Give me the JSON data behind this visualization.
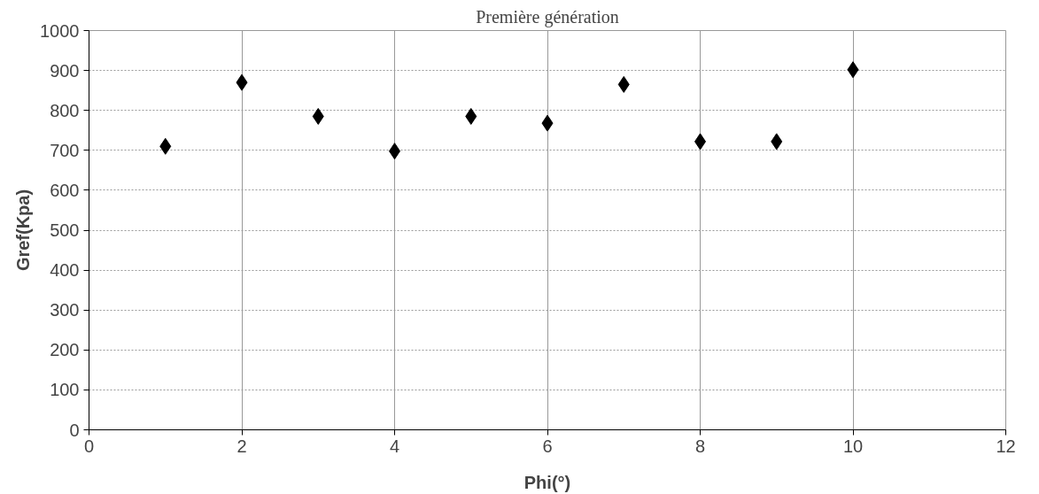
{
  "chart_data": {
    "type": "scatter",
    "title": "Première génération",
    "xlabel": "Phi(°)",
    "ylabel": "Gref(Kpa)",
    "x": [
      1,
      2,
      3,
      4,
      5,
      6,
      7,
      8,
      9,
      10
    ],
    "series": [
      {
        "color": "#000000",
        "values": [
          710,
          870,
          785,
          698,
          785,
          768,
          865,
          722,
          722,
          902
        ]
      }
    ],
    "xlim": [
      0,
      12
    ],
    "xticks": [
      0,
      2,
      4,
      6,
      8,
      10,
      12
    ],
    "ylim": [
      0,
      1000
    ],
    "yticks": [
      0,
      100,
      200,
      300,
      400,
      500,
      600,
      700,
      800,
      900,
      1000
    ],
    "grid": true,
    "marker": "diamond"
  }
}
